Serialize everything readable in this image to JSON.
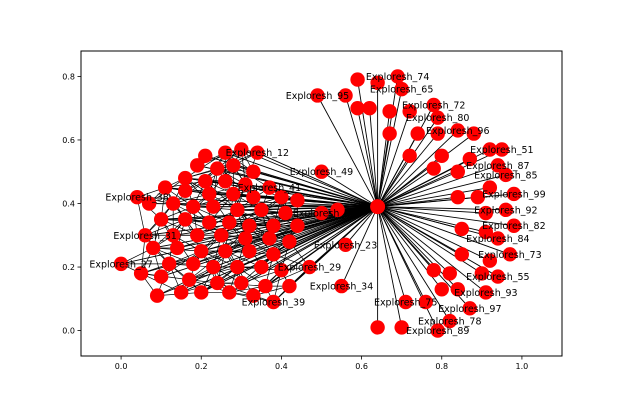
{
  "chart_data": {
    "type": "network",
    "title": "",
    "xlabel": "",
    "ylabel": "",
    "xlim": [
      -0.1,
      1.1
    ],
    "ylim": [
      -0.08,
      0.88
    ],
    "x_ticks": [
      0.0,
      0.2,
      0.4,
      0.6,
      0.8,
      1.0
    ],
    "y_ticks": [
      0.0,
      0.2,
      0.4,
      0.6,
      0.8
    ],
    "x_tick_labels": [
      "0.0",
      "0.2",
      "0.4",
      "0.6",
      "0.8",
      "1.0"
    ],
    "y_tick_labels": [
      "0.0",
      "0.2",
      "0.4",
      "0.6",
      "0.8"
    ],
    "node_color": "#ff0000",
    "edge_color": "#000000",
    "center": {
      "label": "",
      "x": 0.64,
      "y": 0.39
    },
    "labeled_nodes": [
      {
        "label": "Exploresh_74",
        "x": 0.69,
        "y": 0.8
      },
      {
        "label": "Exploresh_65",
        "x": 0.7,
        "y": 0.76
      },
      {
        "label": "Exploresh_95",
        "x": 0.49,
        "y": 0.74
      },
      {
        "label": "Exploresh_72",
        "x": 0.78,
        "y": 0.71
      },
      {
        "label": "Exploresh_80",
        "x": 0.79,
        "y": 0.67
      },
      {
        "label": "Exploresh_96",
        "x": 0.84,
        "y": 0.63
      },
      {
        "label": "Exploresh_12",
        "x": 0.34,
        "y": 0.56
      },
      {
        "label": "Exploresh_51",
        "x": 0.95,
        "y": 0.57
      },
      {
        "label": "Exploresh_49",
        "x": 0.5,
        "y": 0.5
      },
      {
        "label": "Exploresh_87",
        "x": 0.94,
        "y": 0.52
      },
      {
        "label": "Exploresh_85",
        "x": 0.96,
        "y": 0.49
      },
      {
        "label": "Exploresh_99",
        "x": 0.98,
        "y": 0.43
      },
      {
        "label": "Exploresh_41",
        "x": 0.37,
        "y": 0.45
      },
      {
        "label": "Exploresh_38",
        "x": 0.04,
        "y": 0.42
      },
      {
        "label": "Exploresh_92",
        "x": 0.96,
        "y": 0.38
      },
      {
        "label": "Exploresh_82",
        "x": 0.98,
        "y": 0.33
      },
      {
        "label": "Exploresh_31",
        "x": 0.06,
        "y": 0.3
      },
      {
        "label": "Exploresh_84",
        "x": 0.94,
        "y": 0.29
      },
      {
        "label": "Exploresh_23",
        "x": 0.56,
        "y": 0.27
      },
      {
        "label": "Exploresh_73",
        "x": 0.97,
        "y": 0.24
      },
      {
        "label": "Exploresh_27",
        "x": 0.0,
        "y": 0.21
      },
      {
        "label": "Exploresh_29",
        "x": 0.47,
        "y": 0.2
      },
      {
        "label": "Exploresh_55",
        "x": 0.94,
        "y": 0.17
      },
      {
        "label": "Exploresh_34",
        "x": 0.55,
        "y": 0.14
      },
      {
        "label": "Exploresh_93",
        "x": 0.91,
        "y": 0.12
      },
      {
        "label": "Exploresh_39",
        "x": 0.38,
        "y": 0.09
      },
      {
        "label": "Exploresh_97",
        "x": 0.87,
        "y": 0.07
      },
      {
        "label": "Exploresh_78",
        "x": 0.82,
        "y": 0.03
      },
      {
        "label": "Exploresh_89",
        "x": 0.79,
        "y": 0.0
      },
      {
        "label": "Exploresh_75",
        "x": 0.71,
        "y": 0.09
      },
      {
        "label": "Exploresh_8",
        "x": 0.5,
        "y": 0.37
      }
    ],
    "unlabeled_nodes": [
      [
        0.59,
        0.79
      ],
      [
        0.64,
        0.78
      ],
      [
        0.62,
        0.7
      ],
      [
        0.67,
        0.69
      ],
      [
        0.72,
        0.69
      ],
      [
        0.67,
        0.62
      ],
      [
        0.74,
        0.62
      ],
      [
        0.79,
        0.62
      ],
      [
        0.88,
        0.62
      ],
      [
        0.92,
        0.57
      ],
      [
        0.72,
        0.55
      ],
      [
        0.8,
        0.55
      ],
      [
        0.87,
        0.54
      ],
      [
        0.78,
        0.51
      ],
      [
        0.84,
        0.5
      ],
      [
        0.92,
        0.45
      ],
      [
        0.84,
        0.42
      ],
      [
        0.89,
        0.42
      ],
      [
        0.91,
        0.37
      ],
      [
        0.85,
        0.32
      ],
      [
        0.91,
        0.31
      ],
      [
        0.85,
        0.24
      ],
      [
        0.92,
        0.22
      ],
      [
        0.78,
        0.19
      ],
      [
        0.82,
        0.18
      ],
      [
        0.9,
        0.18
      ],
      [
        0.84,
        0.13
      ],
      [
        0.8,
        0.13
      ],
      [
        0.76,
        0.09
      ],
      [
        0.7,
        0.01
      ],
      [
        0.64,
        0.01
      ],
      [
        0.56,
        0.74
      ],
      [
        0.59,
        0.7
      ],
      [
        0.54,
        0.38
      ],
      [
        0.21,
        0.55
      ],
      [
        0.26,
        0.56
      ],
      [
        0.3,
        0.57
      ],
      [
        0.19,
        0.52
      ],
      [
        0.24,
        0.51
      ],
      [
        0.28,
        0.52
      ],
      [
        0.33,
        0.5
      ],
      [
        0.16,
        0.48
      ],
      [
        0.21,
        0.47
      ],
      [
        0.26,
        0.47
      ],
      [
        0.31,
        0.46
      ],
      [
        0.11,
        0.45
      ],
      [
        0.16,
        0.44
      ],
      [
        0.22,
        0.43
      ],
      [
        0.28,
        0.43
      ],
      [
        0.33,
        0.42
      ],
      [
        0.4,
        0.42
      ],
      [
        0.44,
        0.41
      ],
      [
        0.07,
        0.4
      ],
      [
        0.13,
        0.4
      ],
      [
        0.18,
        0.39
      ],
      [
        0.23,
        0.39
      ],
      [
        0.29,
        0.38
      ],
      [
        0.35,
        0.38
      ],
      [
        0.41,
        0.37
      ],
      [
        0.1,
        0.35
      ],
      [
        0.16,
        0.35
      ],
      [
        0.22,
        0.34
      ],
      [
        0.27,
        0.34
      ],
      [
        0.32,
        0.33
      ],
      [
        0.38,
        0.33
      ],
      [
        0.44,
        0.33
      ],
      [
        0.13,
        0.3
      ],
      [
        0.19,
        0.3
      ],
      [
        0.25,
        0.3
      ],
      [
        0.31,
        0.29
      ],
      [
        0.37,
        0.29
      ],
      [
        0.42,
        0.28
      ],
      [
        0.08,
        0.26
      ],
      [
        0.14,
        0.26
      ],
      [
        0.2,
        0.25
      ],
      [
        0.26,
        0.25
      ],
      [
        0.32,
        0.25
      ],
      [
        0.38,
        0.24
      ],
      [
        0.12,
        0.21
      ],
      [
        0.18,
        0.21
      ],
      [
        0.23,
        0.2
      ],
      [
        0.29,
        0.2
      ],
      [
        0.35,
        0.2
      ],
      [
        0.4,
        0.19
      ],
      [
        0.05,
        0.18
      ],
      [
        0.1,
        0.17
      ],
      [
        0.17,
        0.16
      ],
      [
        0.24,
        0.15
      ],
      [
        0.3,
        0.15
      ],
      [
        0.36,
        0.14
      ],
      [
        0.42,
        0.14
      ],
      [
        0.15,
        0.12
      ],
      [
        0.2,
        0.12
      ],
      [
        0.27,
        0.12
      ],
      [
        0.09,
        0.11
      ],
      [
        0.33,
        0.11
      ]
    ]
  }
}
